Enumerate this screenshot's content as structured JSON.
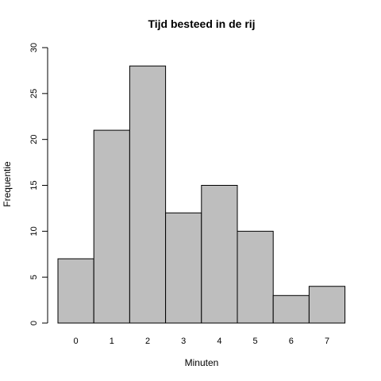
{
  "chart_data": {
    "type": "bar",
    "title": "Tijd besteed in de rij",
    "xlabel": "Minuten",
    "ylabel": "Frequentie",
    "categories": [
      "0",
      "1",
      "2",
      "3",
      "4",
      "5",
      "6",
      "7"
    ],
    "values": [
      7,
      21,
      28,
      12,
      15,
      10,
      3,
      4
    ],
    "ylim": [
      0,
      30
    ],
    "yticks": [
      0,
      5,
      10,
      15,
      20,
      25,
      30
    ],
    "grid": false,
    "colors": {
      "bar_fill": "#bebebe",
      "bar_stroke": "#000000"
    }
  }
}
